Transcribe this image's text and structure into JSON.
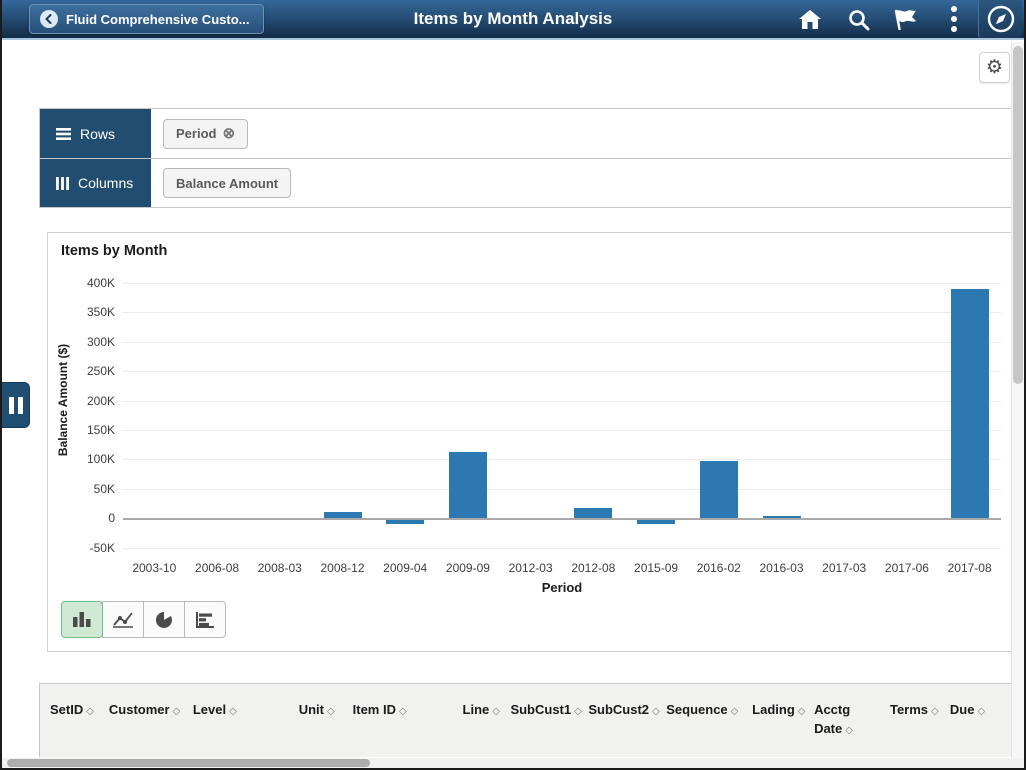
{
  "header": {
    "back_label": "Fluid Comprehensive Custo...",
    "title": "Items by Month Analysis",
    "icons": [
      "home-icon",
      "search-icon",
      "flag-icon",
      "more-options-icon",
      "navbar-compass-icon"
    ]
  },
  "toolbar": {
    "gear_icon": "settings-gear"
  },
  "pivot": {
    "rows_label": "Rows",
    "columns_label": "Columns",
    "row_facets": [
      {
        "label": "Period",
        "removable": true
      }
    ],
    "column_facets": [
      {
        "label": "Balance Amount",
        "removable": false
      }
    ]
  },
  "chart_data": {
    "type": "bar",
    "title": "Items by Month",
    "xlabel": "Period",
    "ylabel": "Balance Amount ($)",
    "categories": [
      "2003-10",
      "2006-08",
      "2008-03",
      "2008-12",
      "2009-04",
      "2009-09",
      "2012-03",
      "2012-08",
      "2015-09",
      "2016-02",
      "2016-03",
      "2017-03",
      "2017-06",
      "2017-08"
    ],
    "values": [
      0,
      0,
      0,
      11000,
      -6000,
      113000,
      0,
      17000,
      -6000,
      98000,
      4000,
      0,
      0,
      390000
    ],
    "ylim": [
      -50000,
      400000
    ],
    "ytick_step": 50000,
    "ytick_labels": [
      "400K",
      "350K",
      "300K",
      "250K",
      "200K",
      "150K",
      "100K",
      "50K",
      "0",
      "-50K"
    ],
    "grid": true,
    "legend": "none",
    "bar_color": "#2c79b2"
  },
  "chart_toolbar": {
    "types": [
      "bar",
      "line",
      "pie",
      "horizontal-bar"
    ],
    "selected": "bar"
  },
  "results_table": {
    "columns": [
      {
        "label": "SetID",
        "sortable": true
      },
      {
        "label": "Customer",
        "sortable": true
      },
      {
        "label": "Level",
        "sortable": true
      },
      {
        "label": "Unit",
        "sortable": true
      },
      {
        "label": "Item ID",
        "sortable": true
      },
      {
        "label": "Line",
        "sortable": true
      },
      {
        "label": "SubCust1",
        "sortable": true
      },
      {
        "label": "SubCust2",
        "sortable": true
      },
      {
        "label": "Sequence",
        "sortable": true
      },
      {
        "label": "Lading",
        "sortable": true
      },
      {
        "label": "Acctg Date",
        "sortable": true
      },
      {
        "label": "Terms",
        "sortable": true
      },
      {
        "label": "Due",
        "sortable": true
      }
    ]
  },
  "colors": {
    "header_top": "#34689a",
    "header_bottom": "#132c49",
    "accent_underline": "#a9c6dd",
    "panel_label_bg": "#204d70",
    "bar": "#2c79b2",
    "selected_chart_type_bg": "#cfe9d4",
    "selected_chart_type_border": "#72bd82"
  }
}
